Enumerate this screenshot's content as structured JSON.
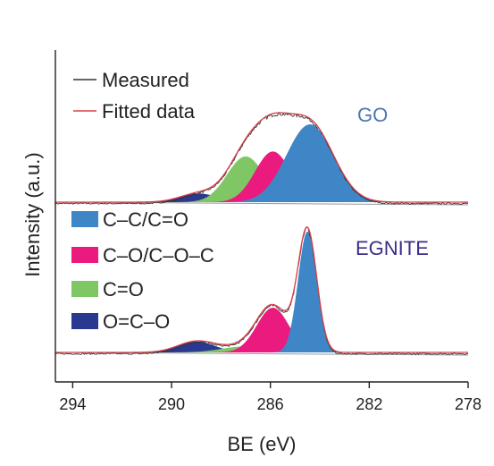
{
  "chart_data": {
    "type": "area",
    "title": "",
    "xlabel": "BE (eV)",
    "ylabel": "Intensity (a.u.)",
    "xlim": [
      294.7,
      278
    ],
    "x_reversed": true,
    "x_ticks": [
      "294",
      "290",
      "286",
      "282",
      "278"
    ],
    "x_tick_values": [
      294,
      290,
      286,
      282,
      278
    ],
    "y_ticks": [],
    "grid": false,
    "legend_top": {
      "placement": "top-left",
      "entries": [
        {
          "label": "Measured",
          "color": "#333333"
        },
        {
          "label": "Fitted data",
          "color": "#d8404a"
        }
      ]
    },
    "legend_components": {
      "placement": "middle-left",
      "entries": [
        {
          "label": "C–C/C=O",
          "color": "#3f86c6"
        },
        {
          "label": "C–O/C–O–C",
          "color": "#ea1a7e"
        },
        {
          "label": "C=O",
          "color": "#7fc665"
        },
        {
          "label": "O=C–O",
          "color": "#2a3990"
        }
      ]
    },
    "panels": [
      {
        "label": "GO",
        "label_color": "#4a77b4",
        "peaks": [
          {
            "component": "O=C–O",
            "center": 288.9,
            "width": 0.75,
            "height": 0.07
          },
          {
            "component": "C=O",
            "center": 287.0,
            "width": 0.75,
            "height": 0.37
          },
          {
            "component": "C–O/C–O–C",
            "center": 285.9,
            "width": 0.72,
            "height": 0.41
          },
          {
            "component": "C–C/C=O",
            "center": 284.4,
            "width": 0.95,
            "height": 0.63
          }
        ]
      },
      {
        "label": "EGNITE",
        "label_color": "#3a2f88",
        "peaks": [
          {
            "component": "O=C–O",
            "center": 289.0,
            "width": 0.75,
            "height": 0.09
          },
          {
            "component": "C=O",
            "center": 287.0,
            "width": 0.95,
            "height": 0.05
          },
          {
            "component": "C–O/C–O–C",
            "center": 285.9,
            "width": 0.65,
            "height": 0.37
          },
          {
            "component": "C–C/C=O",
            "center": 284.5,
            "width": 0.38,
            "height": 1.0
          }
        ]
      }
    ]
  }
}
